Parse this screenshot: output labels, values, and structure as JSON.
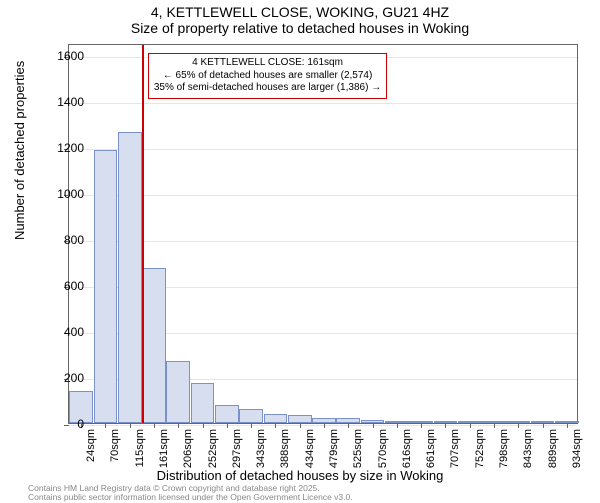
{
  "title": {
    "line1": "4, KETTLEWELL CLOSE, WOKING, GU21 4HZ",
    "line2": "Size of property relative to detached houses in Woking"
  },
  "axes": {
    "ylabel": "Number of detached properties",
    "xlabel": "Distribution of detached houses by size in Woking",
    "ylim": [
      0,
      1650
    ],
    "yticks": [
      0,
      200,
      400,
      600,
      800,
      1000,
      1200,
      1400,
      1600
    ],
    "grid_color": "#e6e6e6",
    "border_color": "#666666",
    "tick_fontsize": 12,
    "label_fontsize": 13
  },
  "bars": {
    "fill_color": "#d6deef",
    "edge_color": "#7a91c9",
    "labels": [
      "24sqm",
      "70sqm",
      "115sqm",
      "161sqm",
      "206sqm",
      "252sqm",
      "297sqm",
      "343sqm",
      "388sqm",
      "434sqm",
      "479sqm",
      "525sqm",
      "570sqm",
      "616sqm",
      "661sqm",
      "707sqm",
      "752sqm",
      "798sqm",
      "843sqm",
      "889sqm",
      "934sqm"
    ],
    "values": [
      140,
      1185,
      1265,
      675,
      268,
      175,
      80,
      60,
      40,
      35,
      20,
      20,
      12,
      5,
      10,
      5,
      4,
      3,
      3,
      2,
      2
    ]
  },
  "reference": {
    "color": "#cc0000",
    "bar_index_after": 2,
    "callout": {
      "line1": "4 KETTLEWELL CLOSE: 161sqm",
      "line2": "← 65% of detached houses are smaller (2,574)",
      "line3": "35% of semi-detached houses are larger (1,386) →"
    }
  },
  "footnote": {
    "line1": "Contains HM Land Registry data © Crown copyright and database right 2025.",
    "line2": "Contains public sector information licensed under the Open Government Licence v3.0."
  },
  "style": {
    "background_color": "#ffffff",
    "title_fontsize": 14,
    "callout_fontsize": 10,
    "footnote_color": "#888888"
  }
}
